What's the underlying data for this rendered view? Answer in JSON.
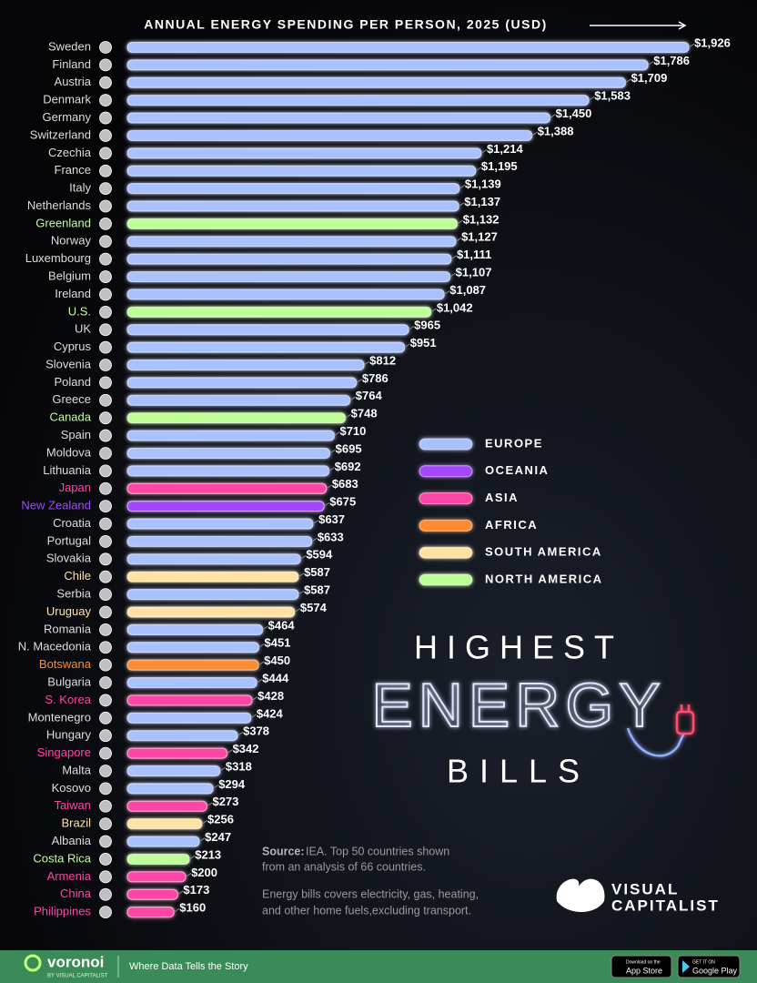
{
  "chart_data": {
    "type": "bar",
    "title": "ANNUAL ENERGY SPENDING PER PERSON, 2025 (USD)",
    "categories": [
      "Sweden",
      "Finland",
      "Austria",
      "Denmark",
      "Germany",
      "Switzerland",
      "Czechia",
      "France",
      "Italy",
      "Netherlands",
      "Greenland",
      "Norway",
      "Luxembourg",
      "Belgium",
      "Ireland",
      "U.S.",
      "UK",
      "Cyprus",
      "Slovenia",
      "Poland",
      "Greece",
      "Canada",
      "Spain",
      "Moldova",
      "Lithuania",
      "Japan",
      "New Zealand",
      "Croatia",
      "Portugal",
      "Slovakia",
      "Chile",
      "Serbia",
      "Uruguay",
      "Romania",
      "N. Macedonia",
      "Botswana",
      "Bulgaria",
      "S. Korea",
      "Montenegro",
      "Hungary",
      "Singapore",
      "Malta",
      "Kosovo",
      "Taiwan",
      "Brazil",
      "Albania",
      "Costa Rica",
      "Armenia",
      "China",
      "Philippines"
    ],
    "series": [
      {
        "name": "EUROPE",
        "color": "#a9c1ff",
        "values": [
          1926,
          1786,
          1709,
          1583,
          1450,
          1388,
          1214,
          1195,
          1139,
          1137,
          null,
          1127,
          1111,
          1107,
          1087,
          null,
          965,
          951,
          812,
          786,
          764,
          null,
          710,
          695,
          692,
          null,
          null,
          637,
          633,
          594,
          null,
          587,
          null,
          464,
          451,
          null,
          444,
          null,
          424,
          378,
          null,
          318,
          294,
          null,
          null,
          247,
          null,
          null,
          null,
          null
        ],
        "value_labels": [
          "$1,926",
          "$1,786",
          "$1,709",
          "$1,583",
          "$1,450",
          "$1,388",
          "$1,214",
          "$1,195",
          "$1,139",
          "$1,137",
          null,
          "$1,127",
          "$1,111",
          "$1,107",
          "$1,087",
          null,
          "$965",
          "$951",
          "$812",
          "$786",
          "$764",
          null,
          "$710",
          "$695",
          "$692",
          null,
          null,
          "$637",
          "$633",
          "$594",
          null,
          "$587",
          null,
          "$464",
          "$451",
          null,
          "$444",
          null,
          "$424",
          "$378",
          null,
          "$318",
          "$294",
          null,
          null,
          "$247",
          null,
          null,
          null,
          null
        ]
      },
      {
        "name": "OCEANIA",
        "color": "#a447ff",
        "values": [
          null,
          null,
          null,
          null,
          null,
          null,
          null,
          null,
          null,
          null,
          null,
          null,
          null,
          null,
          null,
          null,
          null,
          null,
          null,
          null,
          null,
          null,
          null,
          null,
          null,
          null,
          675,
          null,
          null,
          null,
          null,
          null,
          null,
          null,
          null,
          null,
          null,
          null,
          null,
          null,
          null,
          null,
          null,
          null,
          null,
          null,
          null,
          null,
          null,
          null
        ],
        "value_labels": [
          null,
          null,
          null,
          null,
          null,
          null,
          null,
          null,
          null,
          null,
          null,
          null,
          null,
          null,
          null,
          null,
          null,
          null,
          null,
          null,
          null,
          null,
          null,
          null,
          null,
          null,
          "$675",
          null,
          null,
          null,
          null,
          null,
          null,
          null,
          null,
          null,
          null,
          null,
          null,
          null,
          null,
          null,
          null,
          null,
          null,
          null,
          null,
          null,
          null,
          null
        ]
      },
      {
        "name": "ASIA",
        "color": "#ff45a6",
        "values": [
          null,
          null,
          null,
          null,
          null,
          null,
          null,
          null,
          null,
          null,
          null,
          null,
          null,
          null,
          null,
          null,
          null,
          null,
          null,
          null,
          null,
          null,
          null,
          null,
          null,
          683,
          null,
          null,
          null,
          null,
          null,
          null,
          null,
          null,
          null,
          null,
          null,
          428,
          null,
          null,
          342,
          null,
          null,
          273,
          null,
          null,
          null,
          200,
          173,
          160
        ],
        "value_labels": [
          null,
          null,
          null,
          null,
          null,
          null,
          null,
          null,
          null,
          null,
          null,
          null,
          null,
          null,
          null,
          null,
          null,
          null,
          null,
          null,
          null,
          null,
          null,
          null,
          null,
          "$683",
          null,
          null,
          null,
          null,
          null,
          null,
          null,
          null,
          null,
          null,
          null,
          "$428",
          null,
          null,
          "$342",
          null,
          null,
          "$273",
          null,
          null,
          null,
          "$200",
          "$173",
          "$160"
        ]
      },
      {
        "name": "AFRICA",
        "color": "#ff8c30",
        "values": [
          null,
          null,
          null,
          null,
          null,
          null,
          null,
          null,
          null,
          null,
          null,
          null,
          null,
          null,
          null,
          null,
          null,
          null,
          null,
          null,
          null,
          null,
          null,
          null,
          null,
          null,
          null,
          null,
          null,
          null,
          null,
          null,
          null,
          null,
          null,
          450,
          null,
          null,
          null,
          null,
          null,
          null,
          null,
          null,
          null,
          null,
          null,
          null,
          null,
          null
        ],
        "value_labels": [
          null,
          null,
          null,
          null,
          null,
          null,
          null,
          null,
          null,
          null,
          null,
          null,
          null,
          null,
          null,
          null,
          null,
          null,
          null,
          null,
          null,
          null,
          null,
          null,
          null,
          null,
          null,
          null,
          null,
          null,
          null,
          null,
          null,
          null,
          null,
          "$450",
          null,
          null,
          null,
          null,
          null,
          null,
          null,
          null,
          null,
          null,
          null,
          null,
          null,
          null
        ]
      },
      {
        "name": "SOUTH AMERICA",
        "color": "#ffe2a4",
        "values": [
          null,
          null,
          null,
          null,
          null,
          null,
          null,
          null,
          null,
          null,
          null,
          null,
          null,
          null,
          null,
          null,
          null,
          null,
          null,
          null,
          null,
          null,
          null,
          null,
          null,
          null,
          null,
          null,
          null,
          null,
          587,
          null,
          574,
          null,
          null,
          null,
          null,
          null,
          null,
          null,
          null,
          null,
          null,
          null,
          256,
          null,
          null,
          null,
          null,
          null
        ],
        "value_labels": [
          null,
          null,
          null,
          null,
          null,
          null,
          null,
          null,
          null,
          null,
          null,
          null,
          null,
          null,
          null,
          null,
          null,
          null,
          null,
          null,
          null,
          null,
          null,
          null,
          null,
          null,
          null,
          null,
          null,
          null,
          "$587",
          null,
          "$574",
          null,
          null,
          null,
          null,
          null,
          null,
          null,
          null,
          null,
          null,
          null,
          "$256",
          null,
          null,
          null,
          null,
          null
        ]
      },
      {
        "name": "NORTH AMERICA",
        "color": "#bfff98",
        "values": [
          null,
          null,
          null,
          null,
          null,
          null,
          null,
          null,
          null,
          null,
          1132,
          null,
          null,
          null,
          null,
          1042,
          null,
          null,
          null,
          null,
          null,
          748,
          null,
          null,
          null,
          null,
          null,
          null,
          null,
          null,
          null,
          null,
          null,
          null,
          null,
          null,
          null,
          null,
          null,
          null,
          null,
          null,
          null,
          null,
          null,
          null,
          213,
          null,
          null,
          null
        ],
        "value_labels": [
          null,
          null,
          null,
          null,
          null,
          null,
          null,
          null,
          null,
          null,
          "$1,132",
          null,
          null,
          null,
          null,
          "$1,042",
          null,
          null,
          null,
          null,
          null,
          "$748",
          null,
          null,
          null,
          null,
          null,
          null,
          null,
          null,
          null,
          null,
          null,
          null,
          null,
          null,
          null,
          null,
          null,
          null,
          null,
          null,
          null,
          null,
          null,
          null,
          "$213",
          null,
          null,
          null
        ]
      }
    ]
  },
  "headline": {
    "line1": "HIGHEST",
    "line2": "ENERGY",
    "line3": "BILLS"
  },
  "notes": {
    "source_label": "Source:",
    "source_text": "IEA. Top 50 countries shown",
    "source_text2": "from an analysis of 66 countries.",
    "definition1": "Energy bills covers electricity, gas, heating,",
    "definition2": "and other home fuels,excluding transport."
  },
  "branding": {
    "logo1": "VISUAL",
    "logo2": "CAPITALIST",
    "footer_brand": "voronoi",
    "footer_by": "BY VISUAL CAPITALIST",
    "footer_tagline": "Where Data Tells the Story",
    "appstore_small": "Download on the",
    "appstore": "App Store",
    "googleplay_small": "GET IT ON",
    "googleplay": "Google Play"
  }
}
